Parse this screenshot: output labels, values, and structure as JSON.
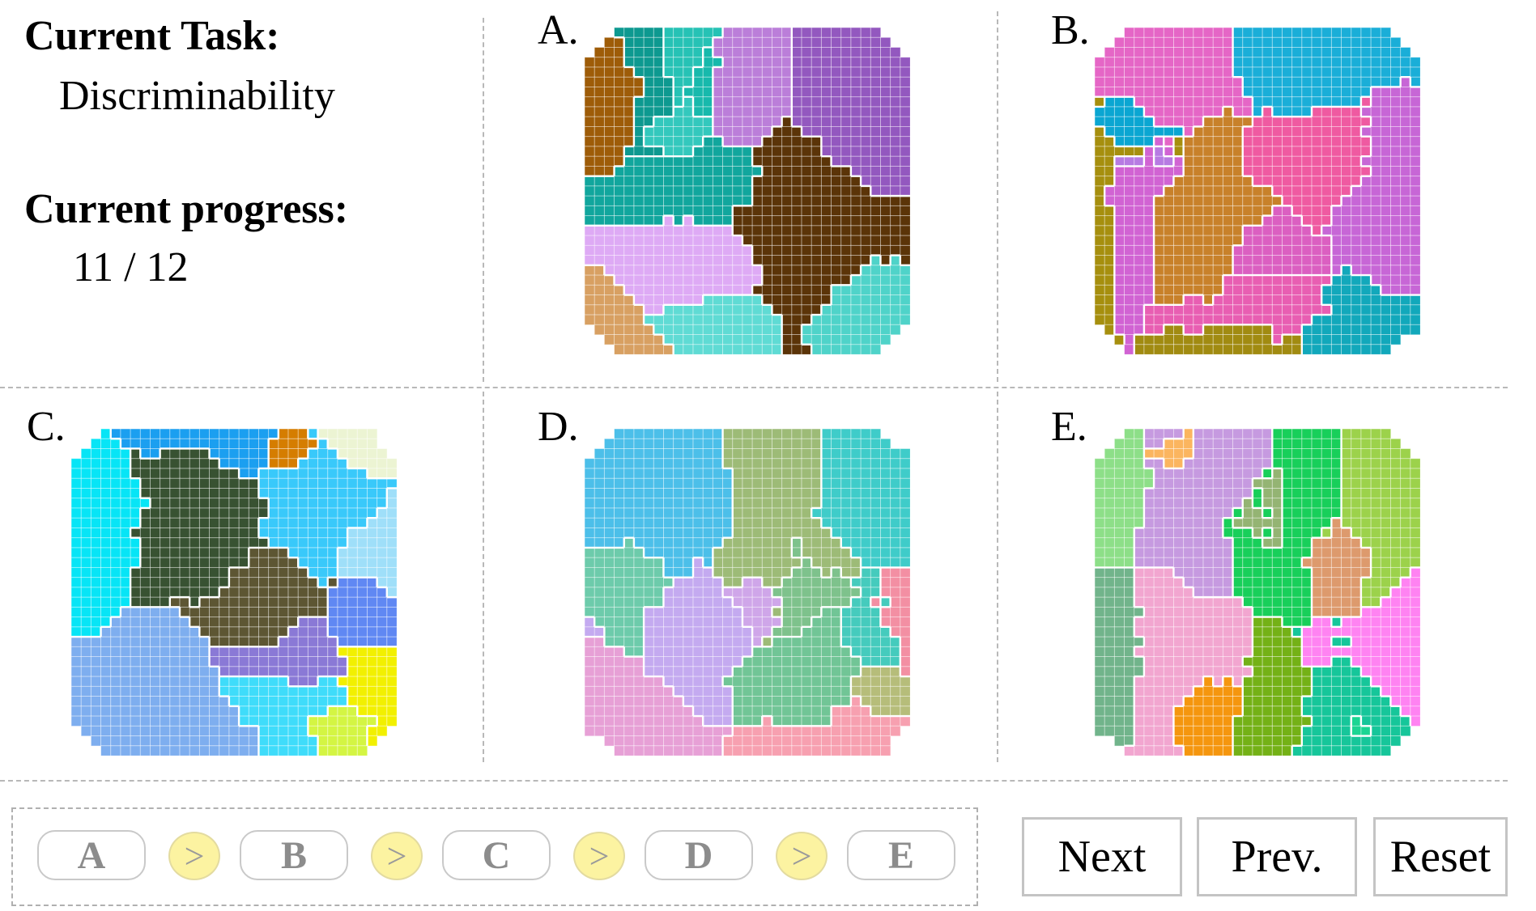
{
  "task": {
    "label": "Current Task:",
    "value": "Discriminability"
  },
  "progress": {
    "label": "Current progress:",
    "value": "11 / 12"
  },
  "panels": [
    {
      "id": "A",
      "label": "A.",
      "palette": [
        "#4fd3c9",
        "#5fdbd4",
        "#11a69d",
        "#0d9990",
        "#17b9ac",
        "#26c2b5",
        "#33c8bd",
        "#9358bf",
        "#bb7ed9",
        "#deaaf5",
        "#9e5c08",
        "#d8a062",
        "#5b3408"
      ]
    },
    {
      "id": "B",
      "label": "B.",
      "palette": [
        "#b77be3",
        "#e85eb2",
        "#ef5aa1",
        "#c766d6",
        "#db5fc1",
        "#e566c6",
        "#d163d3",
        "#12a8bb",
        "#1aaed8",
        "#0aa6d2",
        "#a18b11",
        "#c8812a",
        "#a68f0e"
      ]
    },
    {
      "id": "C",
      "label": "C.",
      "palette": [
        "#7eaeef",
        "#3fdcfa",
        "#9fdff9",
        "#1b9ff0",
        "#39c9fa",
        "#07e5f6",
        "#6088f3",
        "#8a79d6",
        "#ecf4d3",
        "#d4f543",
        "#f2f000",
        "#d57d00",
        "#385232",
        "#5d5633"
      ]
    },
    {
      "id": "D",
      "label": "D.",
      "palette": [
        "#9dbb77",
        "#b6bd7a",
        "#4cbfe9",
        "#6dcbab",
        "#45cbbd",
        "#3fccc9",
        "#71c596",
        "#7ec28c",
        "#e7a0d6",
        "#cfa6e9",
        "#c4aaf0",
        "#f38fa3",
        "#f7a0b0"
      ]
    },
    {
      "id": "E",
      "label": "E.",
      "palette": [
        "#16c69a",
        "#71b48b",
        "#18cf5a",
        "#1ad593",
        "#8ddf88",
        "#9cd24b",
        "#74b116",
        "#94b473",
        "#f5960e",
        "#fbb55f",
        "#dd9a6d",
        "#c69ae0",
        "#f2a6d0",
        "#ff83f2"
      ]
    }
  ],
  "order": {
    "items": [
      "A",
      "B",
      "C",
      "D",
      "E"
    ],
    "separator": ">"
  },
  "buttons": {
    "next": "Next",
    "prev": "Prev.",
    "reset": "Reset"
  }
}
